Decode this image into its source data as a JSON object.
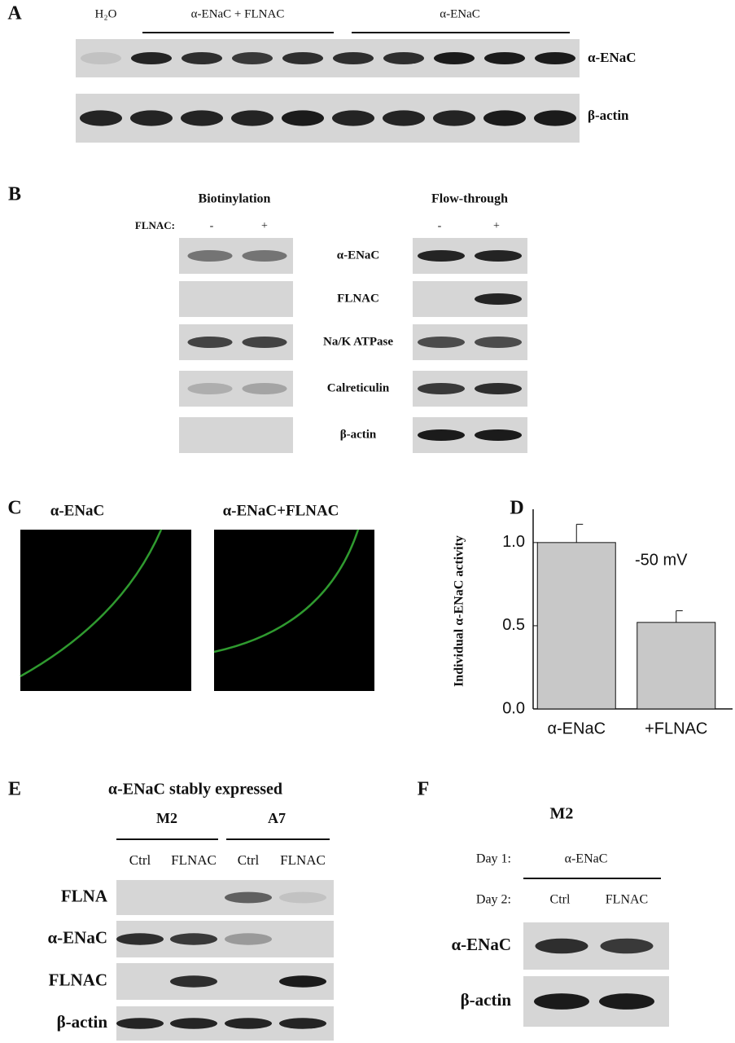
{
  "panel_A": {
    "letter": "A",
    "headers": [
      "H₂O",
      "α-ENaC + FLNAC",
      "α-ENaC"
    ],
    "rows": [
      "α-ENaC",
      "β-actin"
    ]
  },
  "panel_B": {
    "letter": "B",
    "groups": [
      "Biotinylation",
      "Flow-through"
    ],
    "condition_label": "FLNAC:",
    "lanes": [
      "-",
      "+",
      "-",
      "+"
    ],
    "rows": [
      "α-ENaC",
      "FLNAC",
      "Na/K ATPase",
      "Calreticulin",
      "β-actin"
    ]
  },
  "panel_C": {
    "letter": "C",
    "titles": [
      "α-ENaC",
      "α-ENaC+FLNAC"
    ]
  },
  "chart_data": {
    "type": "bar",
    "letter": "D",
    "y_label": "Individual α-ENaC activity",
    "annotation": "-50 mV",
    "categories": [
      "α-ENaC",
      "+FLNAC"
    ],
    "values": [
      1.0,
      0.52
    ],
    "errors": [
      0.11,
      0.07
    ],
    "color": "#c8c8c8",
    "ylim": [
      0,
      1.2
    ],
    "yticks": [
      {
        "value": 0,
        "label": "0.0"
      },
      {
        "value": 0.5,
        "label": "0.5"
      },
      {
        "value": 1,
        "label": "1.0"
      }
    ]
  },
  "panel_E": {
    "letter": "E",
    "title": "α-ENaC stably expressed",
    "groups": [
      "M2",
      "A7"
    ],
    "lanes": [
      "Ctrl",
      "FLNAC",
      "Ctrl",
      "FLNAC"
    ],
    "rows": [
      "FLNA",
      "α-ENaC",
      "FLNAC",
      "β-actin"
    ]
  },
  "panel_F": {
    "letter": "F",
    "title": "M2",
    "day_labels": [
      "Day 1:",
      "Day 2:"
    ],
    "day1": "α-ENaC",
    "lanes": [
      "Ctrl",
      "FLNAC"
    ],
    "rows": [
      "α-ENaC",
      "β-actin"
    ]
  }
}
